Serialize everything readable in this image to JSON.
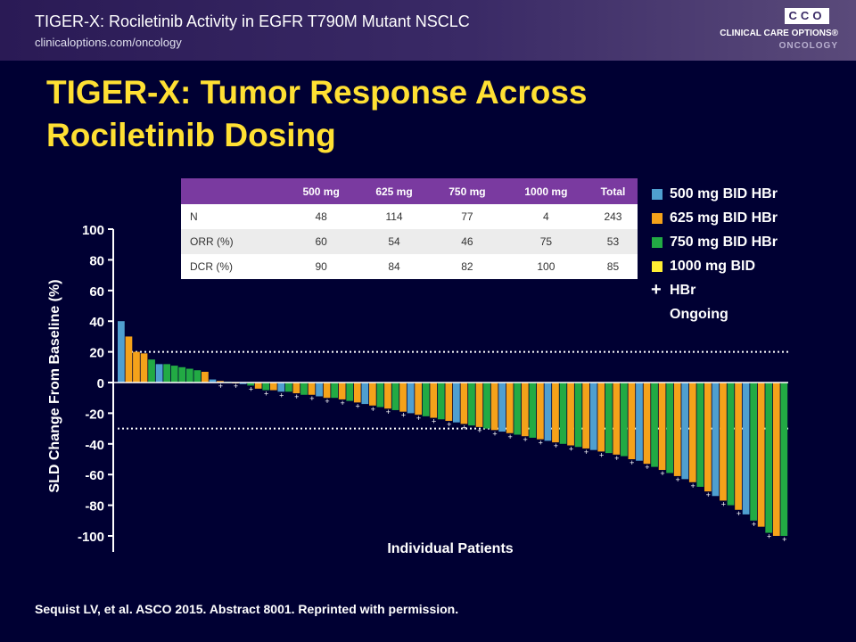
{
  "header": {
    "title": "TIGER-X: Rociletinib Activity in EGFR T790M Mutant NSCLC",
    "url": "clinicaloptions.com/oncology",
    "logo_letters": "CCO",
    "logo_line1": "CLINICAL CARE OPTIONS®",
    "logo_line2": "ONCOLOGY"
  },
  "slide_title": "TIGER-X: Tumor Response Across Rociletinib Dosing",
  "table": {
    "columns": [
      "",
      "500 mg",
      "625 mg",
      "750 mg",
      "1000 mg",
      "Total"
    ],
    "rows": [
      [
        "N",
        "48",
        "114",
        "77",
        "4",
        "243"
      ],
      [
        "ORR (%)",
        "60",
        "54",
        "46",
        "75",
        "53"
      ],
      [
        "DCR (%)",
        "90",
        "84",
        "82",
        "100",
        "85"
      ]
    ]
  },
  "legend": [
    {
      "label": "500 mg BID HBr",
      "color": "#4f9fd0"
    },
    {
      "label": "625 mg BID HBr",
      "color": "#f5a21a"
    },
    {
      "label": "750 mg BID HBr",
      "color": "#22aa44"
    },
    {
      "label": "1000 mg BID",
      "color": "#ffee33"
    },
    {
      "label": "HBr",
      "symbol": "+"
    },
    {
      "label": "Ongoing"
    }
  ],
  "citation": "Sequist LV, et al. ASCO 2015. Abstract 8001. Reprinted with permission.",
  "chart_data": {
    "type": "bar",
    "ylabel": "SLD Change From Baseline (%)",
    "xlabel": "Individual Patients",
    "ylim": [
      -100,
      100
    ],
    "yticks": [
      100,
      80,
      60,
      40,
      20,
      0,
      -20,
      -40,
      -60,
      -80,
      -100
    ],
    "reference_lines": [
      20,
      -30
    ],
    "series_colors": {
      "500": "#4f9fd0",
      "625": "#f5a21a",
      "750": "#22aa44",
      "1000": "#ffee33"
    },
    "bars": [
      {
        "v": 40,
        "d": "500"
      },
      {
        "v": 30,
        "d": "625"
      },
      {
        "v": 20,
        "d": "625"
      },
      {
        "v": 19,
        "d": "625"
      },
      {
        "v": 15,
        "d": "750"
      },
      {
        "v": 12,
        "d": "500"
      },
      {
        "v": 12,
        "d": "750"
      },
      {
        "v": 11,
        "d": "750"
      },
      {
        "v": 10,
        "d": "750"
      },
      {
        "v": 9,
        "d": "750"
      },
      {
        "v": 8,
        "d": "750"
      },
      {
        "v": 7,
        "d": "625"
      },
      {
        "v": 2,
        "d": "500"
      },
      {
        "v": 1,
        "d": "625"
      },
      {
        "v": 0.5,
        "d": "750"
      },
      {
        "v": 0,
        "d": "625"
      },
      {
        "v": -1,
        "d": "500"
      },
      {
        "v": -2,
        "d": "750"
      },
      {
        "v": -4,
        "d": "625"
      },
      {
        "v": -5,
        "d": "750"
      },
      {
        "v": -5,
        "d": "625"
      },
      {
        "v": -6,
        "d": "500"
      },
      {
        "v": -6,
        "d": "750"
      },
      {
        "v": -7,
        "d": "625"
      },
      {
        "v": -8,
        "d": "750"
      },
      {
        "v": -8,
        "d": "625"
      },
      {
        "v": -9,
        "d": "500"
      },
      {
        "v": -10,
        "d": "625"
      },
      {
        "v": -10,
        "d": "750"
      },
      {
        "v": -11,
        "d": "625"
      },
      {
        "v": -12,
        "d": "750"
      },
      {
        "v": -13,
        "d": "625"
      },
      {
        "v": -14,
        "d": "500"
      },
      {
        "v": -15,
        "d": "625"
      },
      {
        "v": -16,
        "d": "750"
      },
      {
        "v": -17,
        "d": "625"
      },
      {
        "v": -18,
        "d": "750"
      },
      {
        "v": -19,
        "d": "625"
      },
      {
        "v": -20,
        "d": "500"
      },
      {
        "v": -21,
        "d": "625"
      },
      {
        "v": -22,
        "d": "750"
      },
      {
        "v": -23,
        "d": "625"
      },
      {
        "v": -24,
        "d": "750"
      },
      {
        "v": -25,
        "d": "625"
      },
      {
        "v": -26,
        "d": "500"
      },
      {
        "v": -27,
        "d": "625"
      },
      {
        "v": -28,
        "d": "750"
      },
      {
        "v": -29,
        "d": "625"
      },
      {
        "v": -30,
        "d": "750"
      },
      {
        "v": -31,
        "d": "625"
      },
      {
        "v": -32,
        "d": "500"
      },
      {
        "v": -33,
        "d": "625"
      },
      {
        "v": -34,
        "d": "750"
      },
      {
        "v": -35,
        "d": "625"
      },
      {
        "v": -36,
        "d": "750"
      },
      {
        "v": -37,
        "d": "625"
      },
      {
        "v": -38,
        "d": "500"
      },
      {
        "v": -39,
        "d": "625"
      },
      {
        "v": -40,
        "d": "750"
      },
      {
        "v": -41,
        "d": "625"
      },
      {
        "v": -42,
        "d": "750"
      },
      {
        "v": -43,
        "d": "625"
      },
      {
        "v": -44,
        "d": "500"
      },
      {
        "v": -45,
        "d": "625"
      },
      {
        "v": -46,
        "d": "750"
      },
      {
        "v": -47,
        "d": "625"
      },
      {
        "v": -48,
        "d": "750"
      },
      {
        "v": -50,
        "d": "625"
      },
      {
        "v": -51,
        "d": "500"
      },
      {
        "v": -53,
        "d": "625"
      },
      {
        "v": -55,
        "d": "750"
      },
      {
        "v": -57,
        "d": "625"
      },
      {
        "v": -59,
        "d": "750"
      },
      {
        "v": -61,
        "d": "625"
      },
      {
        "v": -63,
        "d": "500"
      },
      {
        "v": -65,
        "d": "625"
      },
      {
        "v": -68,
        "d": "750"
      },
      {
        "v": -71,
        "d": "625"
      },
      {
        "v": -74,
        "d": "500"
      },
      {
        "v": -77,
        "d": "625"
      },
      {
        "v": -80,
        "d": "750"
      },
      {
        "v": -83,
        "d": "625"
      },
      {
        "v": -86,
        "d": "500"
      },
      {
        "v": -90,
        "d": "750"
      },
      {
        "v": -94,
        "d": "625"
      },
      {
        "v": -98,
        "d": "750"
      },
      {
        "v": -100,
        "d": "625"
      },
      {
        "v": -100,
        "d": "750"
      }
    ]
  }
}
